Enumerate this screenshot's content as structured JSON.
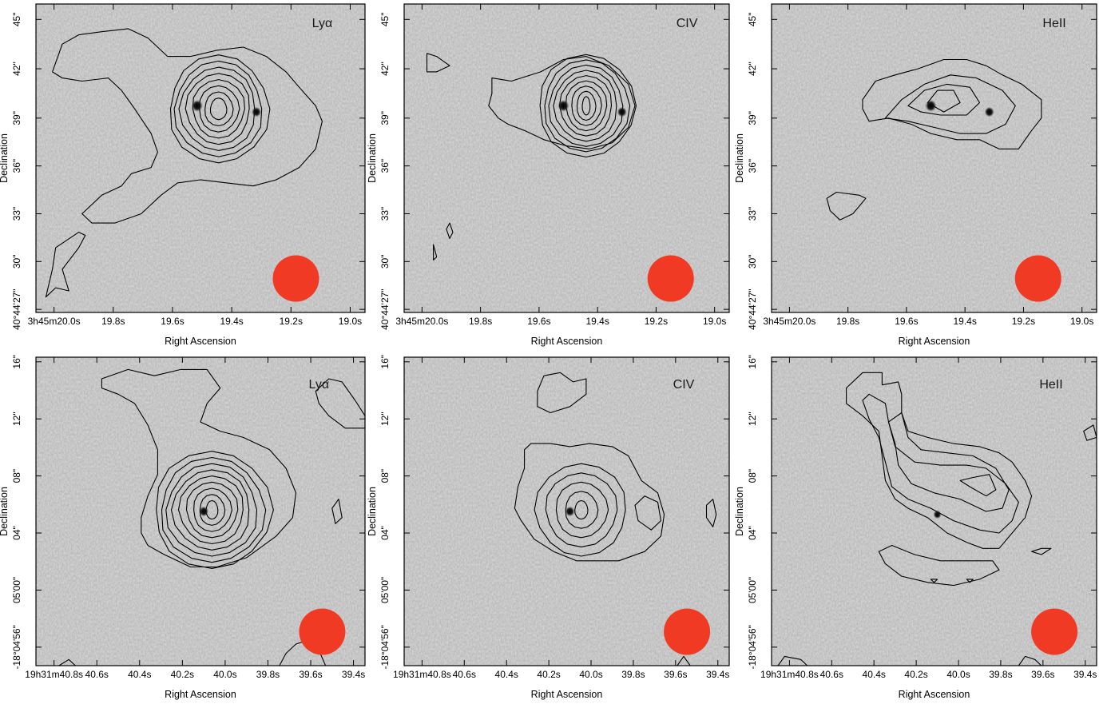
{
  "figure": {
    "panels": [
      {
        "id": "top-lya",
        "line_label": "Lyα",
        "xlabel": "Right Ascension",
        "ylabel": "Declination",
        "xticks": [
          "3h45m20.0s",
          "19.8s",
          "19.6s",
          "19.4s",
          "19.2s",
          "19.0s"
        ],
        "yticks": [
          "40°44'27\"",
          "30\"",
          "33\"",
          "36\"",
          "39\"",
          "42\"",
          "45\""
        ],
        "beam_color": "#f03a24"
      },
      {
        "id": "top-civ",
        "line_label": "CIV",
        "xlabel": "Right Ascension",
        "ylabel": "Declination",
        "xticks": [
          "3h45m20.0s",
          "19.8s",
          "19.6s",
          "19.4s",
          "19.2s",
          "19.0s"
        ],
        "yticks": [
          "40°44'27\"",
          "30\"",
          "33\"",
          "36\"",
          "39\"",
          "42\"",
          "45\""
        ],
        "beam_color": "#f03a24"
      },
      {
        "id": "top-heii",
        "line_label": "HeII",
        "xlabel": "Right Ascension",
        "ylabel": "Declination",
        "xticks": [
          "3h45m20.0s",
          "19.8s",
          "19.6s",
          "19.4s",
          "19.2s",
          "19.0s"
        ],
        "yticks": [
          "40°44'27\"",
          "30\"",
          "33\"",
          "36\"",
          "39\"",
          "42\"",
          "45\""
        ],
        "beam_color": "#f03a24"
      },
      {
        "id": "bottom-lya",
        "line_label": "Lyα",
        "xlabel": "Right Ascension",
        "ylabel": "Declination",
        "xticks": [
          "19h31m40.8s",
          "40.6s",
          "40.4s",
          "40.2s",
          "40.0s",
          "39.8s",
          "39.6s",
          "39.4s"
        ],
        "yticks": [
          "-18°04'56\"",
          "05'00\"",
          "04\"",
          "08\"",
          "12\"",
          "16\""
        ],
        "beam_color": "#f03a24"
      },
      {
        "id": "bottom-civ",
        "line_label": "CIV",
        "xlabel": "Right Ascension",
        "ylabel": "Declination",
        "xticks": [
          "19h31m40.8s",
          "40.6s",
          "40.4s",
          "40.2s",
          "40.0s",
          "39.8s",
          "39.6s",
          "39.4s"
        ],
        "yticks": [
          "-18°04'56\"",
          "05'00\"",
          "04\"",
          "08\"",
          "12\"",
          "16\""
        ],
        "beam_color": "#f03a24"
      },
      {
        "id": "bottom-heii",
        "line_label": "HeII",
        "xlabel": "Right Ascension",
        "ylabel": "Declination",
        "xticks": [
          "19h31m40.8s",
          "40.6s",
          "40.4s",
          "40.2s",
          "40.0s",
          "39.8s",
          "39.6s",
          "39.4s"
        ],
        "yticks": [
          "-18°04'56\"",
          "05'00\"",
          "04\"",
          "08\"",
          "12\"",
          "16\""
        ],
        "beam_color": "#f03a24"
      }
    ]
  }
}
